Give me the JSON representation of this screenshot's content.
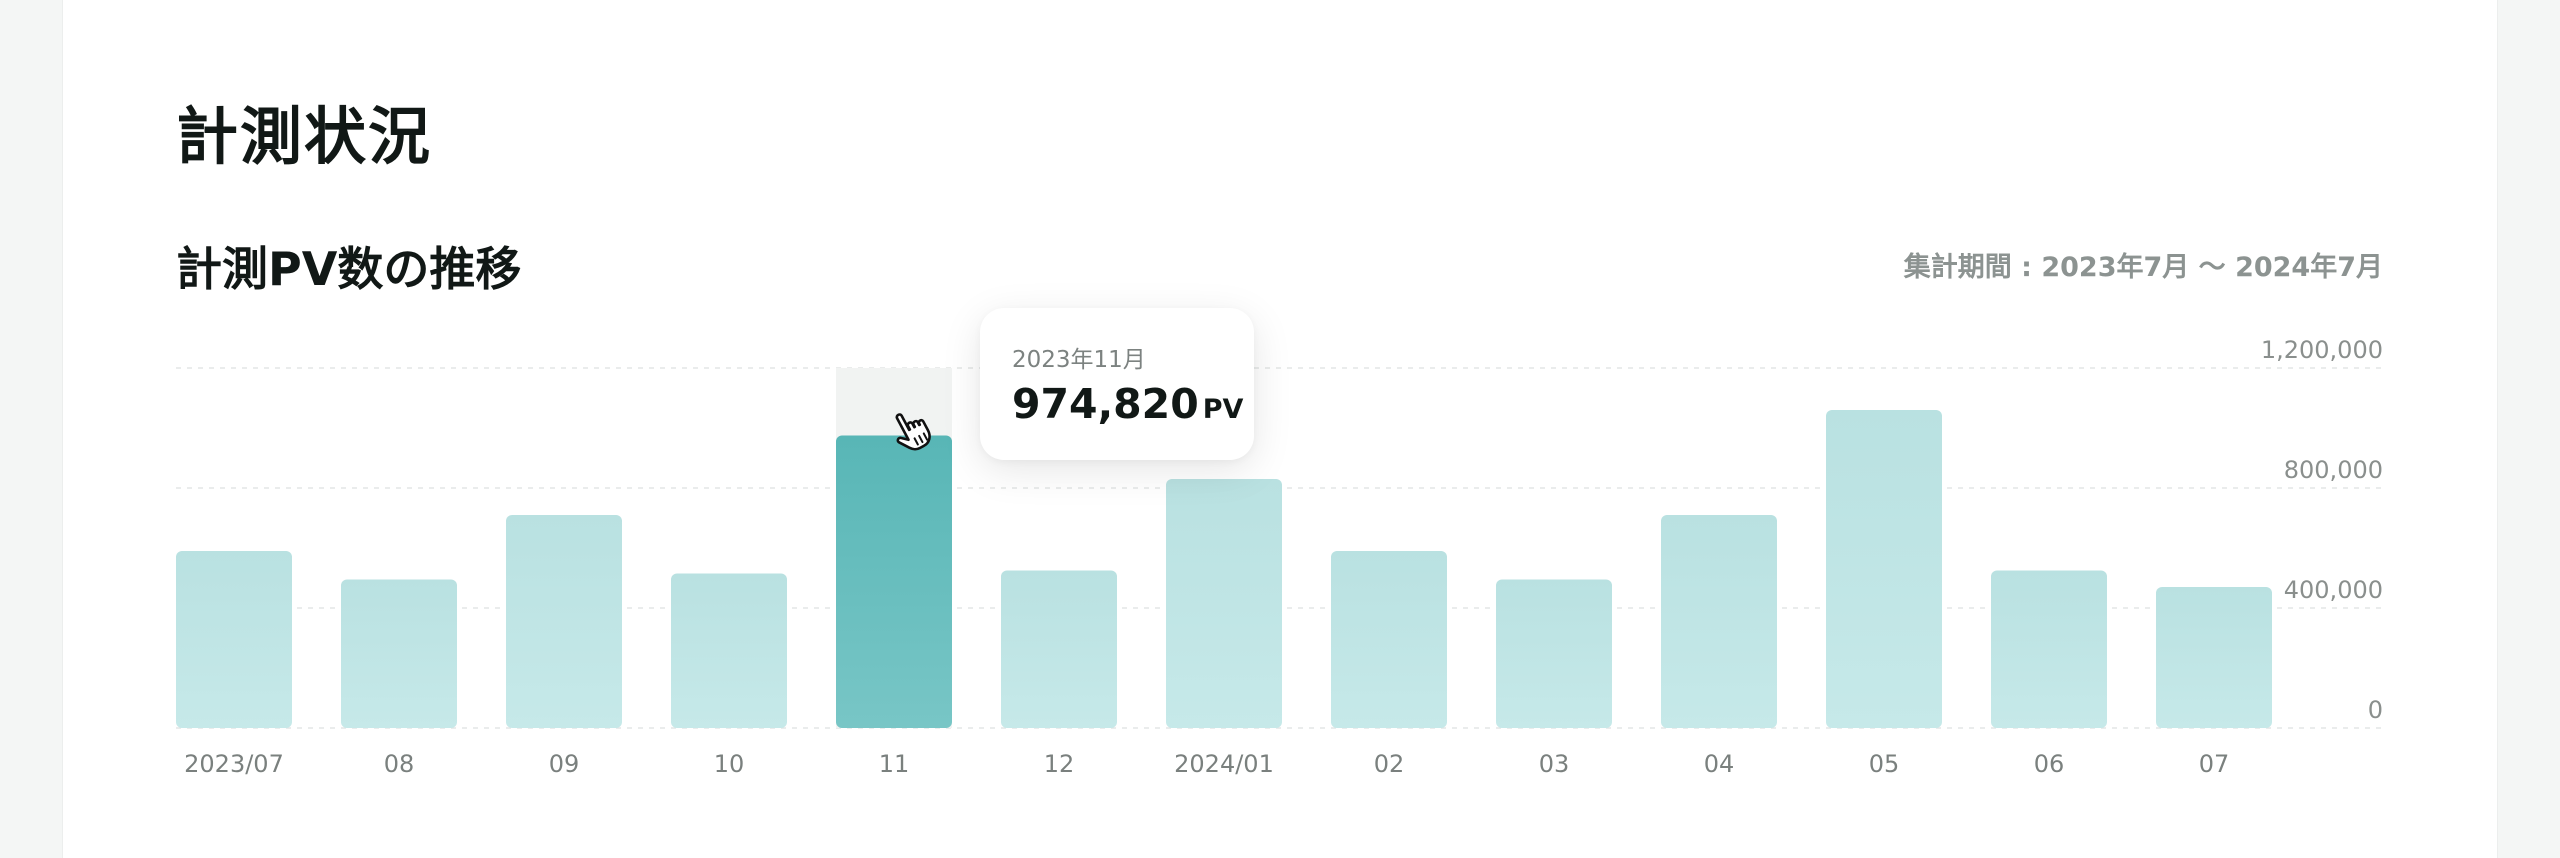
{
  "section_title": "計測状況",
  "period_label": "集計期間 : 2023年7月 〜 2024年7月",
  "tooltip": {
    "date": "2023年11月",
    "value": "974,820",
    "unit": "PV"
  },
  "chart_data": {
    "type": "bar",
    "title": "計測PV数の推移",
    "categories": [
      "2023/07",
      "08",
      "09",
      "10",
      "11",
      "12",
      "2024/01",
      "02",
      "03",
      "04",
      "05",
      "06",
      "07"
    ],
    "values": [
      590000,
      495000,
      710000,
      515000,
      974820,
      525000,
      830000,
      590000,
      495000,
      710000,
      1060000,
      525000,
      470000
    ],
    "ylim": [
      0,
      1200000
    ],
    "yticks": [
      "0",
      "400,000",
      "800,000",
      "1,200,000"
    ],
    "grid": true,
    "highlight_index": 4,
    "colors": {
      "bar": "#bfe4e4",
      "bar_highlight": "#5bb8b8",
      "hover_band": "#f1f3f2"
    }
  }
}
